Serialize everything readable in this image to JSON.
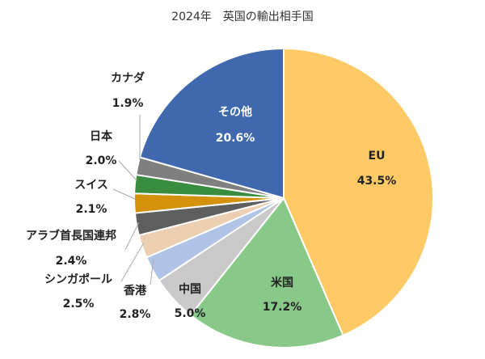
{
  "chart_data": {
    "type": "pie",
    "title": "2024年　英国の輸出相手国",
    "unit": "%",
    "start": "top, clockwise",
    "slices": [
      {
        "label": "EU",
        "value": 43.5,
        "value_label": "43.5%",
        "color": "#FFC966"
      },
      {
        "label": "米国",
        "value": 17.2,
        "value_label": "17.2%",
        "color": "#88C98A"
      },
      {
        "label": "中国",
        "value": 5.0,
        "value_label": "5.0%",
        "color": "#C9C9C9"
      },
      {
        "label": "香港",
        "value": 2.8,
        "value_label": "2.8%",
        "color": "#AFC3E6"
      },
      {
        "label": "シンガポール",
        "value": 2.5,
        "value_label": "2.5%",
        "color": "#EBCFB0"
      },
      {
        "label": "アラブ首長国連邦",
        "value": 2.4,
        "value_label": "2.4%",
        "color": "#5E5E5E"
      },
      {
        "label": "スイス",
        "value": 2.1,
        "value_label": "2.1%",
        "color": "#D4920A"
      },
      {
        "label": "日本",
        "value": 2.0,
        "value_label": "2.0%",
        "color": "#3A8C3F"
      },
      {
        "label": "カナダ",
        "value": 1.9,
        "value_label": "1.9%",
        "color": "#7F7F7F"
      },
      {
        "label": "その他",
        "value": 20.6,
        "value_label": "20.6%",
        "color": "#4068AE"
      }
    ]
  }
}
